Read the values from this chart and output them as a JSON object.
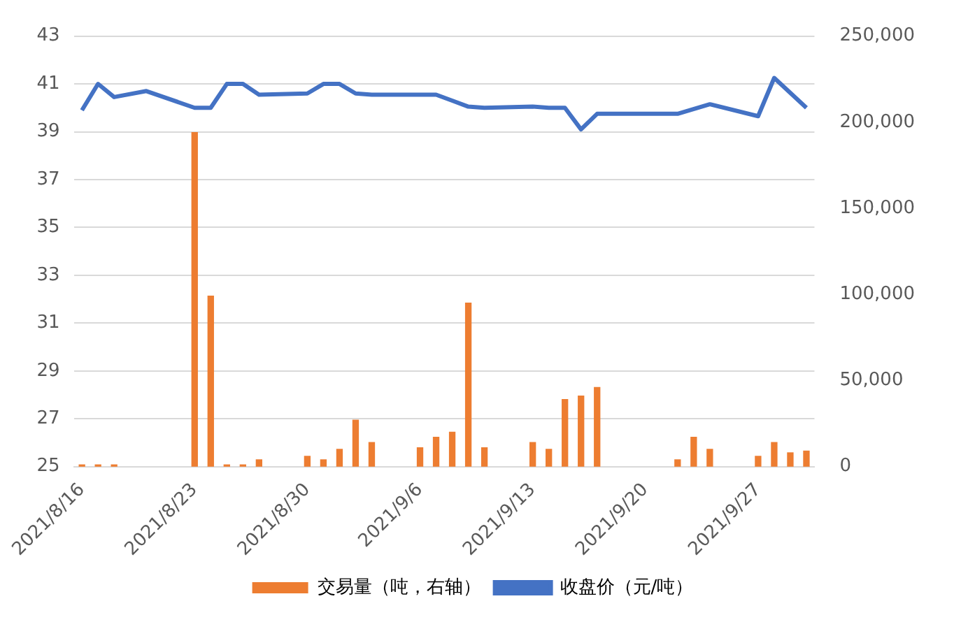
{
  "chart_data": {
    "type": "bar",
    "xlim": [
      "2021-08-15T12:00",
      "2021-09-30T12:00"
    ],
    "xticks": [
      {
        "value": "2021-08-16",
        "label": "2021/8/16"
      },
      {
        "value": "2021-08-23",
        "label": "2021/8/23"
      },
      {
        "value": "2021-08-30",
        "label": "2021/8/30"
      },
      {
        "value": "2021-09-06",
        "label": "2021/9/6"
      },
      {
        "value": "2021-09-13",
        "label": "2021/9/13"
      },
      {
        "value": "2021-09-20",
        "label": "2021/9/20"
      },
      {
        "value": "2021-09-27",
        "label": "2021/9/27"
      }
    ],
    "ylim": [
      25,
      43
    ],
    "yticks": [
      25,
      27,
      29,
      31,
      33,
      35,
      37,
      39,
      41,
      43
    ],
    "y2lim": [
      0,
      250000
    ],
    "y2ticks": [
      0,
      {
        "value": 50000,
        "label": "50,000"
      },
      {
        "value": 100000,
        "label": "100,000"
      },
      {
        "value": 150000,
        "label": "150,000"
      },
      {
        "value": 200000,
        "label": "200,000"
      },
      {
        "value": 250000,
        "label": "250,000"
      }
    ],
    "grid": "y",
    "legend": "bottom",
    "series": [
      {
        "name": "交易量（吨，右轴）",
        "color": "#ed7d31",
        "axis": "y2",
        "x": [
          "2021-08-16",
          "2021-08-17",
          "2021-08-18",
          "2021-08-23",
          "2021-08-24",
          "2021-08-25",
          "2021-08-26",
          "2021-08-27",
          "2021-08-30",
          "2021-08-31",
          "2021-09-01",
          "2021-09-02",
          "2021-09-03",
          "2021-09-06",
          "2021-09-07",
          "2021-09-08",
          "2021-09-09",
          "2021-09-10",
          "2021-09-13",
          "2021-09-14",
          "2021-09-15",
          "2021-09-16",
          "2021-09-17",
          "2021-09-22",
          "2021-09-23",
          "2021-09-24",
          "2021-09-27",
          "2021-09-28",
          "2021-09-29",
          "2021-09-30"
        ],
        "values": [
          1000,
          1000,
          1000,
          194000,
          99000,
          1000,
          1000,
          4000,
          6000,
          4000,
          10000,
          27000,
          14000,
          11000,
          17000,
          20000,
          95000,
          11000,
          14000,
          10000,
          39000,
          41000,
          46000,
          4000,
          17000,
          10000,
          6000,
          14000,
          8000,
          9000
        ]
      },
      {
        "type": "line",
        "name": "收盘价（元/吨）",
        "color": "#4472c4",
        "axis": "y",
        "marker": "none",
        "line_style": "solid",
        "x": [
          "2021-08-16",
          "2021-08-17",
          "2021-08-18",
          "2021-08-20",
          "2021-08-23",
          "2021-08-24",
          "2021-08-25",
          "2021-08-26",
          "2021-08-27",
          "2021-08-30",
          "2021-08-31",
          "2021-09-01",
          "2021-09-02",
          "2021-09-03",
          "2021-09-07",
          "2021-09-08",
          "2021-09-09",
          "2021-09-10",
          "2021-09-13",
          "2021-09-14",
          "2021-09-15",
          "2021-09-16",
          "2021-09-17",
          "2021-09-22",
          "2021-09-24",
          "2021-09-27",
          "2021-09-28",
          "2021-09-30"
        ],
        "values": [
          39.9,
          41.0,
          40.45,
          40.7,
          40.0,
          40.0,
          41.0,
          41.0,
          40.55,
          40.6,
          41.0,
          41.0,
          40.6,
          40.55,
          40.55,
          40.3,
          40.05,
          40.0,
          40.05,
          40.0,
          40.0,
          39.1,
          39.75,
          39.75,
          40.15,
          39.65,
          41.25,
          40.0
        ]
      }
    ]
  }
}
